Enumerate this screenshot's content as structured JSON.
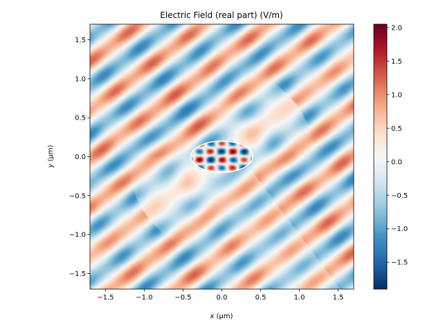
{
  "chart_data": {
    "type": "heatmap",
    "title": "Electric Field (real part) (V/m)",
    "xlabel_var": "x",
    "xlabel_unit": " (µm)",
    "ylabel_var": "y",
    "ylabel_unit": " (µm)",
    "xlim": [
      -1.7,
      1.7
    ],
    "ylim": [
      -1.7,
      1.7
    ],
    "x_ticks": [
      -1.5,
      -1.0,
      -0.5,
      0.0,
      0.5,
      1.0,
      1.5
    ],
    "x_tick_labels": [
      "−1.5",
      "−1.0",
      "−0.5",
      "0.0",
      "0.5",
      "1.0",
      "1.5"
    ],
    "y_ticks": [
      -1.5,
      -1.0,
      -0.5,
      0.0,
      0.5,
      1.0,
      1.5
    ],
    "y_tick_labels": [
      "−1.5",
      "−1.0",
      "−0.5",
      "0.0",
      "0.5",
      "1.0",
      "1.5"
    ],
    "colorbar": {
      "vmin": -1.9,
      "vmax": 2.05,
      "colormap": "RdBu_r",
      "ticks": [
        -1.5,
        -1.0,
        -0.5,
        0.0,
        0.5,
        1.0,
        1.5,
        2.0
      ],
      "tick_labels": [
        "−1.5",
        "−1.0",
        "−0.5",
        "0.0",
        "0.5",
        "1.0",
        "1.5",
        "2.0"
      ]
    },
    "ellipse": {
      "cx": 0.0,
      "cy": 0.0,
      "rx": 0.4,
      "ry": 0.2,
      "color": "#ffffff"
    },
    "grid": false
  }
}
